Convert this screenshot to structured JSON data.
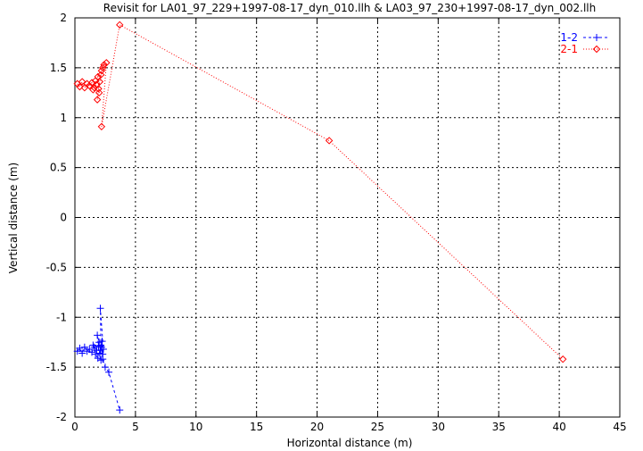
{
  "chart_data": {
    "type": "scatter",
    "title": "Revisit for LA01_97_229+1997-08-17_dyn_010.llh & LA03_97_230+1997-08-17_dyn_002.llh",
    "xlabel": "Horizontal distance (m)",
    "ylabel": "Vertical distance (m)",
    "xlim": [
      0,
      45
    ],
    "ylim": [
      -2,
      2
    ],
    "xticks": [
      0,
      5,
      10,
      15,
      20,
      25,
      30,
      35,
      40,
      45
    ],
    "xtick_labels": [
      "0",
      "5",
      "10",
      "15",
      "20",
      "25",
      "30",
      "35",
      "40",
      "45"
    ],
    "yticks": [
      -2,
      -1.5,
      -1,
      -0.5,
      0,
      0.5,
      1,
      1.5,
      2
    ],
    "ytick_labels": [
      "-2",
      "-1.5",
      "-1",
      "-0.5",
      "0",
      "0.5",
      "1",
      "1.5",
      "2"
    ],
    "grid": true,
    "legend_position": "top-right",
    "series": [
      {
        "name": "1-2",
        "color": "#0000ff",
        "marker": "plus",
        "line": "dashed",
        "x": [
          0.2,
          0.4,
          0.6,
          0.8,
          1.0,
          1.2,
          1.4,
          1.6,
          1.8,
          1.5,
          1.7,
          1.9,
          2.0,
          1.85,
          1.95,
          2.05,
          2.15,
          2.1,
          2.2,
          2.25,
          2.3,
          2.35,
          2.1,
          2.15,
          2.3,
          2.5,
          2.8,
          3.7
        ],
        "y": [
          -1.34,
          -1.31,
          -1.36,
          -1.3,
          -1.34,
          -1.32,
          -1.35,
          -1.3,
          -1.33,
          -1.28,
          -1.37,
          -1.41,
          -1.25,
          -1.18,
          -1.29,
          -1.36,
          -1.43,
          -1.33,
          -1.3,
          -1.24,
          -1.37,
          -1.32,
          -0.91,
          -1.28,
          -1.42,
          -1.5,
          -1.55,
          -1.93
        ]
      },
      {
        "name": "2-1",
        "color": "#ff0000",
        "marker": "diamond",
        "line": "dotted",
        "x": [
          0.2,
          0.4,
          0.6,
          0.8,
          1.0,
          1.2,
          1.4,
          1.6,
          1.8,
          1.5,
          1.7,
          1.9,
          2.0,
          1.85,
          1.95,
          2.05,
          2.15,
          2.2,
          2.3,
          2.4,
          2.6,
          2.2,
          3.7,
          21.0,
          40.3
        ],
        "y": [
          1.34,
          1.31,
          1.36,
          1.3,
          1.34,
          1.32,
          1.35,
          1.3,
          1.33,
          1.28,
          1.37,
          1.41,
          1.25,
          1.18,
          1.29,
          1.36,
          1.43,
          1.47,
          1.5,
          1.53,
          1.55,
          0.91,
          1.93,
          0.77,
          -1.42
        ]
      }
    ]
  }
}
